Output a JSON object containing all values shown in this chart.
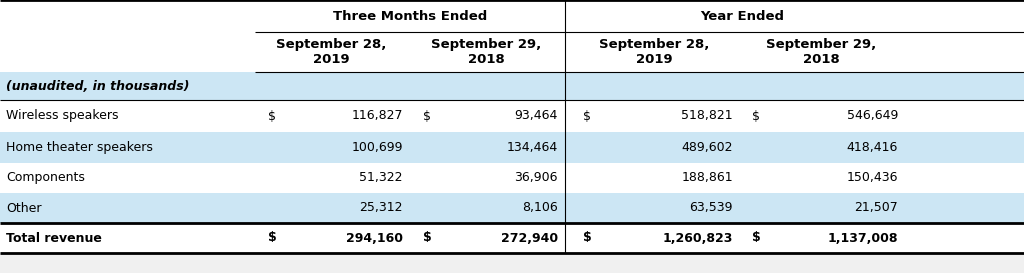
{
  "title_left": "Three Months Ended",
  "title_right": "Year Ended",
  "col_headers": [
    "September 28,\n2019",
    "September 29,\n2018",
    "September 28,\n2019",
    "September 29,\n2018"
  ],
  "row_label_header": "(unaudited, in thousands)",
  "rows": [
    {
      "label": "Wireless speakers",
      "values": [
        "116,827",
        "93,464",
        "518,821",
        "546,649"
      ],
      "dollar_signs": [
        true,
        true,
        true,
        true
      ],
      "bold": false,
      "bg": "#ffffff"
    },
    {
      "label": "Home theater speakers",
      "values": [
        "100,699",
        "134,464",
        "489,602",
        "418,416"
      ],
      "dollar_signs": [
        false,
        false,
        false,
        false
      ],
      "bold": false,
      "bg": "#cce6f4"
    },
    {
      "label": "Components",
      "values": [
        "51,322",
        "36,906",
        "188,861",
        "150,436"
      ],
      "dollar_signs": [
        false,
        false,
        false,
        false
      ],
      "bold": false,
      "bg": "#ffffff"
    },
    {
      "label": "Other",
      "values": [
        "25,312",
        "8,106",
        "63,539",
        "21,507"
      ],
      "dollar_signs": [
        false,
        false,
        false,
        false
      ],
      "bold": false,
      "bg": "#cce6f4"
    },
    {
      "label": "Total revenue",
      "values": [
        "294,160",
        "272,940",
        "1,260,823",
        "1,137,008"
      ],
      "dollar_signs": [
        true,
        true,
        true,
        true
      ],
      "bold": true,
      "bg": "#ffffff"
    }
  ],
  "header_bg": "#ffffff",
  "unaudited_bg": "#cce6f4",
  "background": "#f0f0f0",
  "text_color": "#000000",
  "font_size": 9.0,
  "header_font_size": 9.5,
  "fig_width": 10.24,
  "fig_height": 2.73,
  "dpi": 100
}
